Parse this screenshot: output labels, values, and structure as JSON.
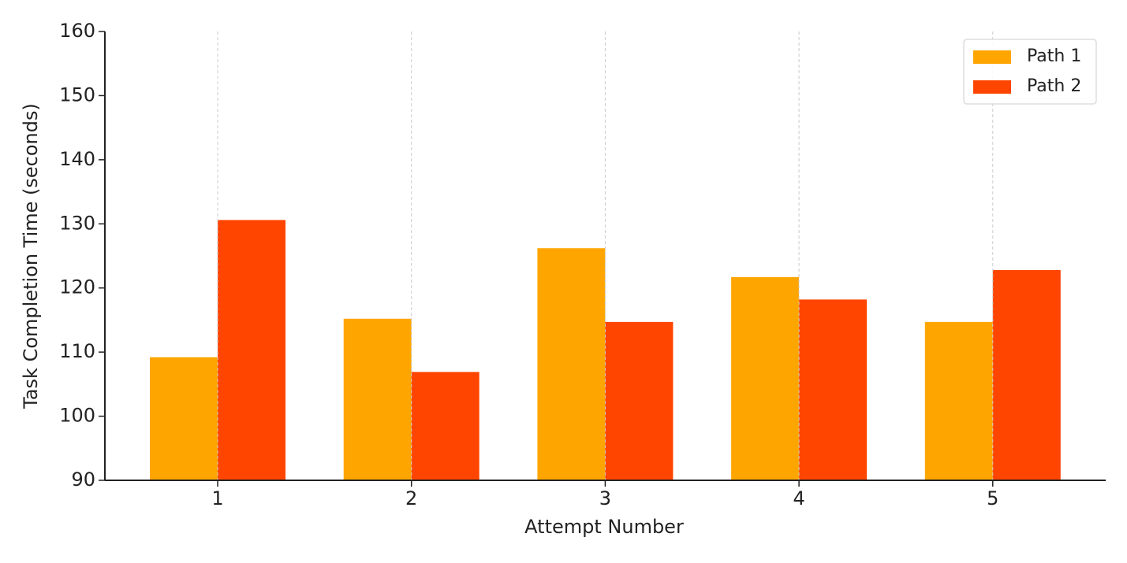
{
  "chart_data": {
    "type": "bar",
    "x_label": "Attempt Number",
    "y_label": "Task Completion Time (seconds)",
    "categories": [
      "1",
      "2",
      "3",
      "4",
      "5"
    ],
    "series": [
      {
        "name": "Path 1",
        "color": "#ffa500",
        "values": [
          109.2,
          115.2,
          126.2,
          121.7,
          114.7
        ]
      },
      {
        "name": "Path 2",
        "color": "#ff4500",
        "values": [
          130.6,
          106.9,
          114.7,
          118.2,
          122.8
        ]
      }
    ],
    "ylim": [
      90,
      160
    ],
    "yticks": [
      90,
      100,
      110,
      120,
      130,
      140,
      150,
      160
    ],
    "grid": "x",
    "legend": "upper right"
  }
}
